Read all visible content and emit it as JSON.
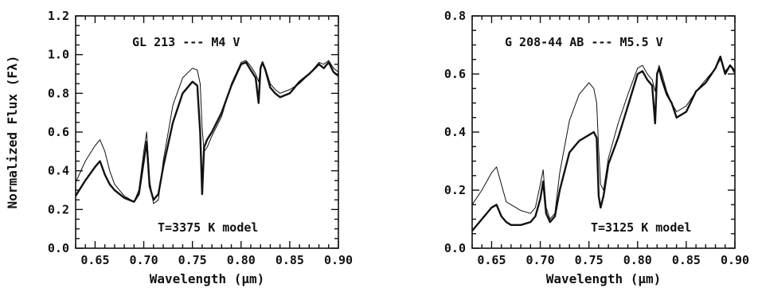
{
  "chart_data": [
    {
      "type": "line",
      "title": "",
      "xlabel": "Wavelength (μm)",
      "ylabel": "Normalized Flux (Fλ)",
      "xlim": [
        0.63,
        0.9
      ],
      "ylim": [
        0.0,
        1.2
      ],
      "x_ticks": [
        "0.65",
        "0.70",
        "0.75",
        "0.80",
        "0.85",
        "0.90"
      ],
      "y_ticks": [
        "0.0",
        "0.2",
        "0.4",
        "0.6",
        "0.8",
        "1.0",
        "1.2"
      ],
      "annotations": {
        "top": "GL 213 --- M4 V",
        "bottom": "T=3375 K model"
      },
      "series": [
        {
          "style": "thick",
          "x": [
            0.63,
            0.64,
            0.65,
            0.655,
            0.66,
            0.665,
            0.67,
            0.68,
            0.69,
            0.695,
            0.7,
            0.703,
            0.706,
            0.71,
            0.715,
            0.72,
            0.73,
            0.74,
            0.75,
            0.755,
            0.758,
            0.76,
            0.762,
            0.765,
            0.77,
            0.78,
            0.79,
            0.8,
            0.805,
            0.81,
            0.815,
            0.818,
            0.82,
            0.822,
            0.825,
            0.83,
            0.835,
            0.84,
            0.85,
            0.86,
            0.87,
            0.88,
            0.885,
            0.89,
            0.895,
            0.9
          ],
          "y": [
            0.27,
            0.35,
            0.42,
            0.45,
            0.38,
            0.33,
            0.3,
            0.26,
            0.24,
            0.28,
            0.45,
            0.55,
            0.32,
            0.25,
            0.28,
            0.42,
            0.65,
            0.8,
            0.86,
            0.84,
            0.6,
            0.28,
            0.52,
            0.56,
            0.6,
            0.7,
            0.84,
            0.95,
            0.96,
            0.92,
            0.88,
            0.75,
            0.93,
            0.96,
            0.92,
            0.83,
            0.8,
            0.78,
            0.8,
            0.86,
            0.9,
            0.95,
            0.93,
            0.96,
            0.91,
            0.89
          ]
        },
        {
          "style": "thin",
          "x": [
            0.63,
            0.64,
            0.65,
            0.655,
            0.66,
            0.665,
            0.67,
            0.68,
            0.69,
            0.695,
            0.7,
            0.703,
            0.706,
            0.71,
            0.715,
            0.72,
            0.73,
            0.74,
            0.75,
            0.755,
            0.758,
            0.76,
            0.762,
            0.765,
            0.77,
            0.78,
            0.79,
            0.8,
            0.805,
            0.81,
            0.815,
            0.818,
            0.82,
            0.822,
            0.825,
            0.83,
            0.835,
            0.84,
            0.85,
            0.86,
            0.87,
            0.88,
            0.885,
            0.89,
            0.895,
            0.9
          ],
          "y": [
            0.34,
            0.45,
            0.53,
            0.56,
            0.5,
            0.4,
            0.33,
            0.27,
            0.24,
            0.3,
            0.5,
            0.6,
            0.35,
            0.23,
            0.25,
            0.45,
            0.74,
            0.88,
            0.93,
            0.92,
            0.85,
            0.62,
            0.5,
            0.52,
            0.58,
            0.68,
            0.85,
            0.96,
            0.97,
            0.94,
            0.9,
            0.86,
            0.93,
            0.96,
            0.93,
            0.85,
            0.82,
            0.8,
            0.82,
            0.85,
            0.9,
            0.96,
            0.95,
            0.97,
            0.93,
            0.91
          ]
        }
      ]
    },
    {
      "type": "line",
      "title": "",
      "xlabel": "Wavelength (μm)",
      "ylabel": "",
      "xlim": [
        0.63,
        0.9
      ],
      "ylim": [
        0.0,
        0.8
      ],
      "x_ticks": [
        "0.65",
        "0.70",
        "0.75",
        "0.80",
        "0.85",
        "0.90"
      ],
      "y_ticks": [
        "0.0",
        "0.2",
        "0.4",
        "0.6",
        "0.8"
      ],
      "annotations": {
        "top": "G 208-44 AB --- M5.5 V",
        "bottom": "T=3125 K model"
      },
      "series": [
        {
          "style": "thick",
          "x": [
            0.63,
            0.64,
            0.65,
            0.655,
            0.66,
            0.665,
            0.67,
            0.68,
            0.69,
            0.695,
            0.7,
            0.703,
            0.706,
            0.71,
            0.715,
            0.72,
            0.73,
            0.74,
            0.75,
            0.755,
            0.758,
            0.76,
            0.762,
            0.765,
            0.77,
            0.78,
            0.79,
            0.8,
            0.805,
            0.81,
            0.815,
            0.818,
            0.82,
            0.822,
            0.825,
            0.83,
            0.835,
            0.84,
            0.85,
            0.86,
            0.87,
            0.88,
            0.885,
            0.89,
            0.895,
            0.9
          ],
          "y": [
            0.06,
            0.1,
            0.14,
            0.15,
            0.11,
            0.09,
            0.08,
            0.08,
            0.09,
            0.11,
            0.17,
            0.23,
            0.12,
            0.09,
            0.11,
            0.2,
            0.33,
            0.37,
            0.39,
            0.4,
            0.38,
            0.18,
            0.14,
            0.18,
            0.29,
            0.38,
            0.49,
            0.6,
            0.61,
            0.58,
            0.56,
            0.43,
            0.6,
            0.62,
            0.58,
            0.53,
            0.5,
            0.45,
            0.47,
            0.54,
            0.57,
            0.62,
            0.66,
            0.6,
            0.63,
            0.61
          ]
        },
        {
          "style": "thin",
          "x": [
            0.63,
            0.64,
            0.65,
            0.655,
            0.66,
            0.665,
            0.67,
            0.68,
            0.69,
            0.695,
            0.7,
            0.703,
            0.706,
            0.71,
            0.715,
            0.72,
            0.73,
            0.74,
            0.75,
            0.755,
            0.758,
            0.76,
            0.762,
            0.765,
            0.77,
            0.78,
            0.79,
            0.8,
            0.805,
            0.81,
            0.815,
            0.818,
            0.82,
            0.822,
            0.825,
            0.83,
            0.835,
            0.84,
            0.85,
            0.86,
            0.87,
            0.88,
            0.885,
            0.89,
            0.895,
            0.9
          ],
          "y": [
            0.15,
            0.2,
            0.26,
            0.28,
            0.22,
            0.16,
            0.15,
            0.13,
            0.12,
            0.14,
            0.22,
            0.27,
            0.14,
            0.1,
            0.12,
            0.26,
            0.44,
            0.53,
            0.57,
            0.55,
            0.5,
            0.34,
            0.22,
            0.2,
            0.31,
            0.43,
            0.53,
            0.62,
            0.63,
            0.6,
            0.58,
            0.54,
            0.6,
            0.63,
            0.6,
            0.54,
            0.5,
            0.47,
            0.49,
            0.54,
            0.58,
            0.62,
            0.65,
            0.61,
            0.63,
            0.6
          ]
        }
      ]
    }
  ]
}
